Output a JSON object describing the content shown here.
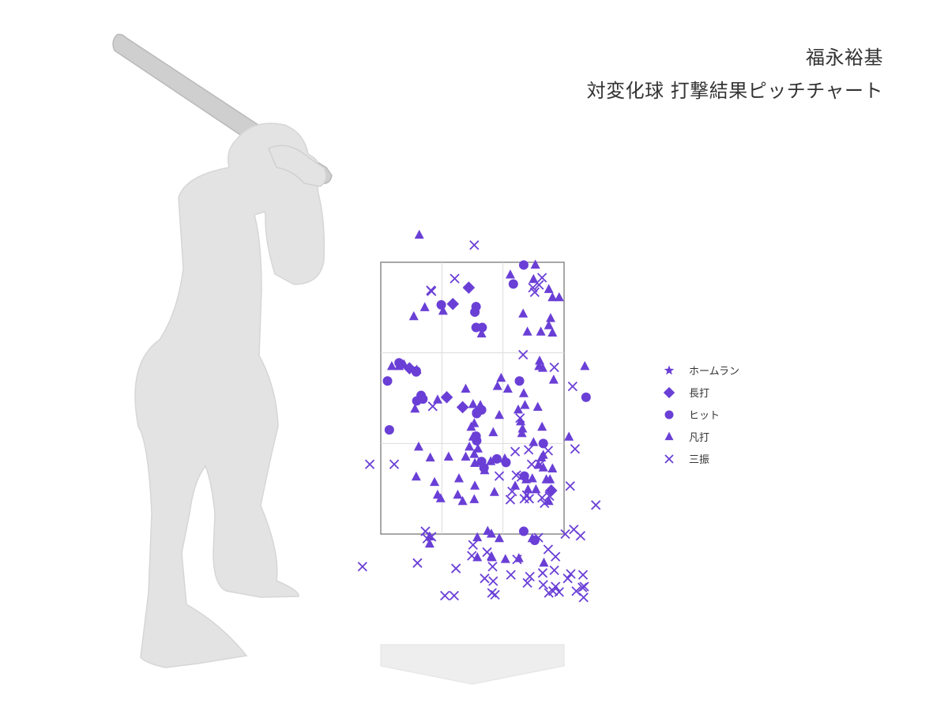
{
  "header": {
    "player_name": "福永裕基",
    "subtitle": "対変化球 打撃結果ピッチチャート"
  },
  "colors": {
    "marker": "#6a3fd6",
    "silhouette": "#e3e3e3",
    "bat": "#cfcfcf",
    "zone_border": "#8a8a8a",
    "grid": "#dcdcdc",
    "plate": "#eeeeee"
  },
  "chart_data": {
    "type": "scatter",
    "zone": {
      "x_range": [
        0,
        3
      ],
      "y_range": [
        0,
        3
      ],
      "grid": "3x3"
    },
    "legend": [
      {
        "key": "homerun",
        "label": "ホームラン",
        "symbol": "star"
      },
      {
        "key": "longhit",
        "label": "長打",
        "symbol": "diamond"
      },
      {
        "key": "hit",
        "label": "ヒット",
        "symbol": "circle"
      },
      {
        "key": "out",
        "label": "凡打",
        "symbol": "triangle"
      },
      {
        "key": "strikeout",
        "label": "三振",
        "symbol": "cross"
      }
    ],
    "series": [
      {
        "key": "longhit",
        "points": [
          [
            1.44,
            2.72
          ],
          [
            1.18,
            2.54
          ],
          [
            0.47,
            1.83
          ],
          [
            1.34,
            1.4
          ],
          [
            1.08,
            1.51
          ],
          [
            2.79,
            0.48
          ]
        ]
      },
      {
        "key": "hit",
        "points": [
          [
            2.34,
            2.97
          ],
          [
            2.17,
            2.76
          ],
          [
            1.56,
            2.51
          ],
          [
            1.54,
            2.45
          ],
          [
            0.99,
            2.53
          ],
          [
            1.56,
            2.28
          ],
          [
            1.66,
            2.28
          ],
          [
            0.3,
            1.89
          ],
          [
            0.11,
            1.69
          ],
          [
            0.58,
            1.8
          ],
          [
            0.58,
            1.79
          ],
          [
            0.66,
            1.53
          ],
          [
            0.59,
            1.47
          ],
          [
            0.69,
            1.49
          ],
          [
            2.27,
            1.69
          ],
          [
            1.57,
            1.34
          ],
          [
            1.57,
            1.33
          ],
          [
            1.65,
            1.37
          ],
          [
            0.14,
            1.15
          ],
          [
            1.56,
            1.08
          ],
          [
            1.57,
            1.03
          ],
          [
            1.9,
            0.83
          ],
          [
            1.65,
            0.8
          ],
          [
            2.05,
            0.79
          ],
          [
            1.69,
            0.73
          ],
          [
            2.66,
            1.0
          ],
          [
            2.35,
            0.64
          ],
          [
            3.36,
            1.51
          ],
          [
            2.34,
            0.03
          ],
          [
            2.52,
            -0.07
          ]
        ]
      },
      {
        "key": "out",
        "points": [
          [
            0.63,
            3.3
          ],
          [
            2.53,
            2.97
          ],
          [
            2.12,
            2.86
          ],
          [
            2.5,
            2.81
          ],
          [
            2.75,
            2.7
          ],
          [
            2.81,
            2.61
          ],
          [
            2.92,
            2.61
          ],
          [
            2.33,
            2.43
          ],
          [
            1.02,
            2.46
          ],
          [
            0.72,
            2.5
          ],
          [
            2.78,
            2.38
          ],
          [
            2.4,
            2.23
          ],
          [
            2.75,
            2.3
          ],
          [
            0.54,
            2.4
          ],
          [
            1.65,
            2.21
          ],
          [
            2.62,
            2.23
          ],
          [
            2.81,
            2.22
          ],
          [
            2.6,
            1.91
          ],
          [
            2.59,
            1.85
          ],
          [
            0.3,
            1.85
          ],
          [
            0.38,
            1.87
          ],
          [
            0.18,
            1.85
          ],
          [
            0.59,
            1.81
          ],
          [
            2.65,
            1.83
          ],
          [
            2.83,
            1.7
          ],
          [
            3.34,
            1.85
          ],
          [
            1.97,
            1.72
          ],
          [
            1.91,
            1.63
          ],
          [
            2.08,
            1.6
          ],
          [
            1.39,
            1.6
          ],
          [
            2.34,
            1.55
          ],
          [
            0.56,
            1.38
          ],
          [
            0.93,
            1.48
          ],
          [
            1.63,
            1.42
          ],
          [
            1.51,
            1.43
          ],
          [
            2.25,
            1.37
          ],
          [
            2.36,
            1.42
          ],
          [
            2.57,
            1.4
          ],
          [
            1.53,
            1.22
          ],
          [
            1.94,
            1.31
          ],
          [
            2.29,
            1.24
          ],
          [
            2.32,
            1.16
          ],
          [
            1.48,
            1.18
          ],
          [
            1.51,
            1.07
          ],
          [
            2.64,
            1.18
          ],
          [
            1.84,
            1.12
          ],
          [
            2.31,
            1.11
          ],
          [
            1.45,
            0.96
          ],
          [
            1.59,
            0.94
          ],
          [
            2.5,
            1.01
          ],
          [
            1.53,
            0.88
          ],
          [
            0.62,
            0.96
          ],
          [
            2.66,
            0.87
          ],
          [
            3.08,
            1.07
          ],
          [
            0.81,
            0.84
          ],
          [
            1.11,
            0.85
          ],
          [
            1.39,
            0.85
          ],
          [
            2.03,
            0.83
          ],
          [
            2.63,
            0.84
          ],
          [
            2.58,
            0.76
          ],
          [
            1.8,
            0.8
          ],
          [
            1.54,
            0.78
          ],
          [
            2.66,
            0.73
          ],
          [
            1.7,
            0.7
          ],
          [
            2.81,
            0.72
          ],
          [
            1.28,
            0.61
          ],
          [
            0.58,
            0.63
          ],
          [
            1.54,
            0.53
          ],
          [
            2.2,
            0.53
          ],
          [
            2.38,
            0.6
          ],
          [
            2.48,
            0.61
          ],
          [
            2.71,
            0.6
          ],
          [
            2.77,
            0.6
          ],
          [
            0.88,
            0.57
          ],
          [
            2.41,
            0.49
          ],
          [
            2.54,
            0.49
          ],
          [
            1.86,
            0.46
          ],
          [
            0.93,
            0.43
          ],
          [
            1.26,
            0.43
          ],
          [
            0.98,
            0.39
          ],
          [
            1.53,
            0.38
          ],
          [
            2.75,
            0.36
          ],
          [
            1.34,
            0.36
          ],
          [
            1.81,
            -0.0
          ],
          [
            1.58,
            -0.04
          ],
          [
            0.8,
            -0.03
          ],
          [
            1.94,
            -0.05
          ],
          [
            1.75,
            0.03
          ],
          [
            2.48,
            -0.05
          ],
          [
            0.8,
            -0.11
          ],
          [
            2.04,
            -0.28
          ],
          [
            1.81,
            -0.25
          ],
          [
            1.82,
            -0.26
          ],
          [
            2.26,
            -0.27
          ],
          [
            2.67,
            -0.32
          ],
          [
            1.58,
            -0.26
          ]
        ]
      },
      {
        "key": "strikeout",
        "points": [
          [
            1.53,
            3.19
          ],
          [
            1.21,
            2.82
          ],
          [
            2.64,
            2.83
          ],
          [
            0.82,
            2.69
          ],
          [
            0.83,
            2.68
          ],
          [
            2.49,
            2.72
          ],
          [
            2.52,
            2.67
          ],
          [
            2.59,
            2.75
          ],
          [
            2.33,
            1.98
          ],
          [
            2.84,
            1.84
          ],
          [
            3.14,
            1.63
          ],
          [
            0.85,
            1.41
          ],
          [
            2.28,
            1.28
          ],
          [
            3.18,
            0.94
          ],
          [
            2.2,
            0.91
          ],
          [
            2.42,
            0.93
          ],
          [
            2.74,
            0.92
          ],
          [
            -0.18,
            0.77
          ],
          [
            0.22,
            0.77
          ],
          [
            2.47,
            0.77
          ],
          [
            2.61,
            0.77
          ],
          [
            1.94,
            0.64
          ],
          [
            2.22,
            0.65
          ],
          [
            2.3,
            0.63
          ],
          [
            3.1,
            0.53
          ],
          [
            2.15,
            0.47
          ],
          [
            2.39,
            0.43
          ],
          [
            2.35,
            0.39
          ],
          [
            2.43,
            0.39
          ],
          [
            2.64,
            0.4
          ],
          [
            2.76,
            0.42
          ],
          [
            3.52,
            0.32
          ],
          [
            2.12,
            0.38
          ],
          [
            2.68,
            0.34
          ],
          [
            0.73,
            0.03
          ],
          [
            0.76,
            -0.05
          ],
          [
            0.83,
            -0.03
          ],
          [
            3.02,
            0.0
          ],
          [
            3.16,
            0.05
          ],
          [
            3.27,
            -0.02
          ],
          [
            2.58,
            -0.04
          ],
          [
            2.74,
            -0.17
          ],
          [
            1.51,
            -0.12
          ],
          [
            1.49,
            -0.24
          ],
          [
            1.74,
            -0.2
          ],
          [
            1.83,
            -0.36
          ],
          [
            0.6,
            -0.32
          ],
          [
            -0.3,
            -0.36
          ],
          [
            1.23,
            -0.38
          ],
          [
            2.23,
            -0.28
          ],
          [
            2.44,
            -0.47
          ],
          [
            2.65,
            -0.43
          ],
          [
            2.86,
            -0.25
          ],
          [
            2.84,
            -0.4
          ],
          [
            2.4,
            -0.54
          ],
          [
            2.13,
            -0.45
          ],
          [
            2.82,
            -0.63
          ],
          [
            1.7,
            -0.49
          ],
          [
            1.84,
            -0.52
          ],
          [
            2.66,
            -0.56
          ],
          [
            2.75,
            -0.65
          ],
          [
            2.86,
            -0.58
          ],
          [
            2.92,
            -0.64
          ],
          [
            3.31,
            -0.45
          ],
          [
            3.33,
            -0.58
          ],
          [
            3.2,
            -0.63
          ],
          [
            1.82,
            -0.65
          ],
          [
            1.05,
            -0.68
          ],
          [
            1.2,
            -0.68
          ],
          [
            1.87,
            -0.67
          ],
          [
            3.06,
            -0.49
          ],
          [
            3.11,
            -0.44
          ],
          [
            3.3,
            -0.59
          ],
          [
            3.32,
            -0.7
          ]
        ]
      }
    ]
  }
}
